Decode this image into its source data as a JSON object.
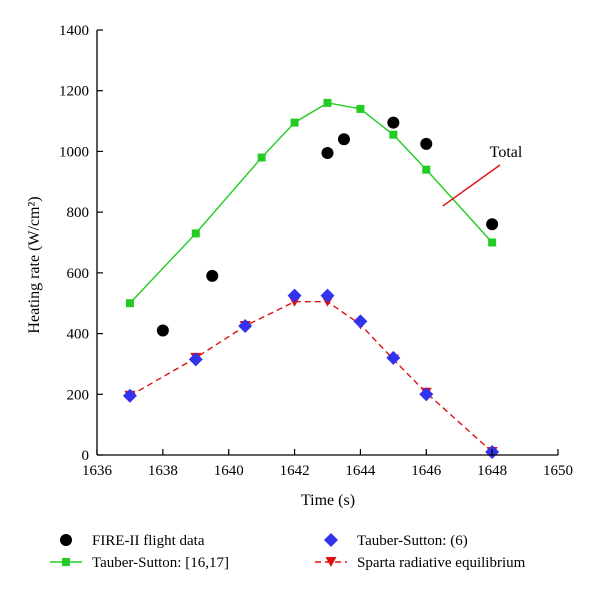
{
  "chart_data": {
    "type": "scatter",
    "xlabel": "Time (s)",
    "ylabel": "Heating rate (W/cm²)",
    "xlim": [
      1636,
      1650
    ],
    "ylim": [
      0,
      1400
    ],
    "x_ticks": [
      1636,
      1638,
      1640,
      1642,
      1644,
      1646,
      1648,
      1650
    ],
    "y_ticks": [
      0,
      200,
      400,
      600,
      800,
      1000,
      1200,
      1400
    ],
    "grid": false,
    "legend_position": "bottom",
    "series": [
      {
        "name": "FIRE-II flight data",
        "kind": "marker",
        "marker": "circle",
        "color": "#000000",
        "x": [
          1638,
          1639.5,
          1643,
          1643.5,
          1645,
          1646,
          1648
        ],
        "y": [
          410,
          590,
          995,
          1040,
          1095,
          1025,
          760
        ]
      },
      {
        "name": "Tauber-Sutton: (6)",
        "kind": "marker",
        "marker": "diamond",
        "color": "#3333ee",
        "x": [
          1637,
          1639,
          1640.5,
          1642,
          1643,
          1644,
          1645,
          1646,
          1648
        ],
        "y": [
          195,
          315,
          425,
          525,
          525,
          440,
          320,
          200,
          10
        ]
      },
      {
        "name": "Tauber-Sutton: [16,17]",
        "kind": "line-marker",
        "marker": "square",
        "color": "#22cc22",
        "x": [
          1637,
          1639,
          1641,
          1642,
          1643,
          1644,
          1645,
          1646,
          1648
        ],
        "y": [
          500,
          730,
          980,
          1095,
          1160,
          1140,
          1055,
          940,
          700
        ]
      },
      {
        "name": "Sparta radiative equilibrium",
        "kind": "dashed-line-marker",
        "marker": "triangle-down",
        "color": "#dd1111",
        "x": [
          1637,
          1639,
          1640.5,
          1642,
          1643,
          1644,
          1645,
          1646,
          1648
        ],
        "y": [
          195,
          320,
          425,
          505,
          505,
          430,
          315,
          205,
          10
        ]
      }
    ],
    "annotations": [
      {
        "text": "Total",
        "x": 1647.9,
        "y": 1000,
        "pointer_to": {
          "x": 1646.5,
          "y": 820
        }
      }
    ]
  },
  "legend": {
    "items": [
      {
        "label": "FIRE-II flight data",
        "marker": "circle",
        "color": "#000000"
      },
      {
        "label": "Tauber-Sutton: (6)",
        "marker": "diamond",
        "color": "#3333ee"
      },
      {
        "label": "Tauber-Sutton: [16,17]",
        "marker": "square",
        "line": "solid",
        "color": "#22cc22"
      },
      {
        "label": "Sparta radiative equilibrium",
        "marker": "triangle-down",
        "line": "dashed",
        "color": "#dd1111"
      }
    ]
  }
}
